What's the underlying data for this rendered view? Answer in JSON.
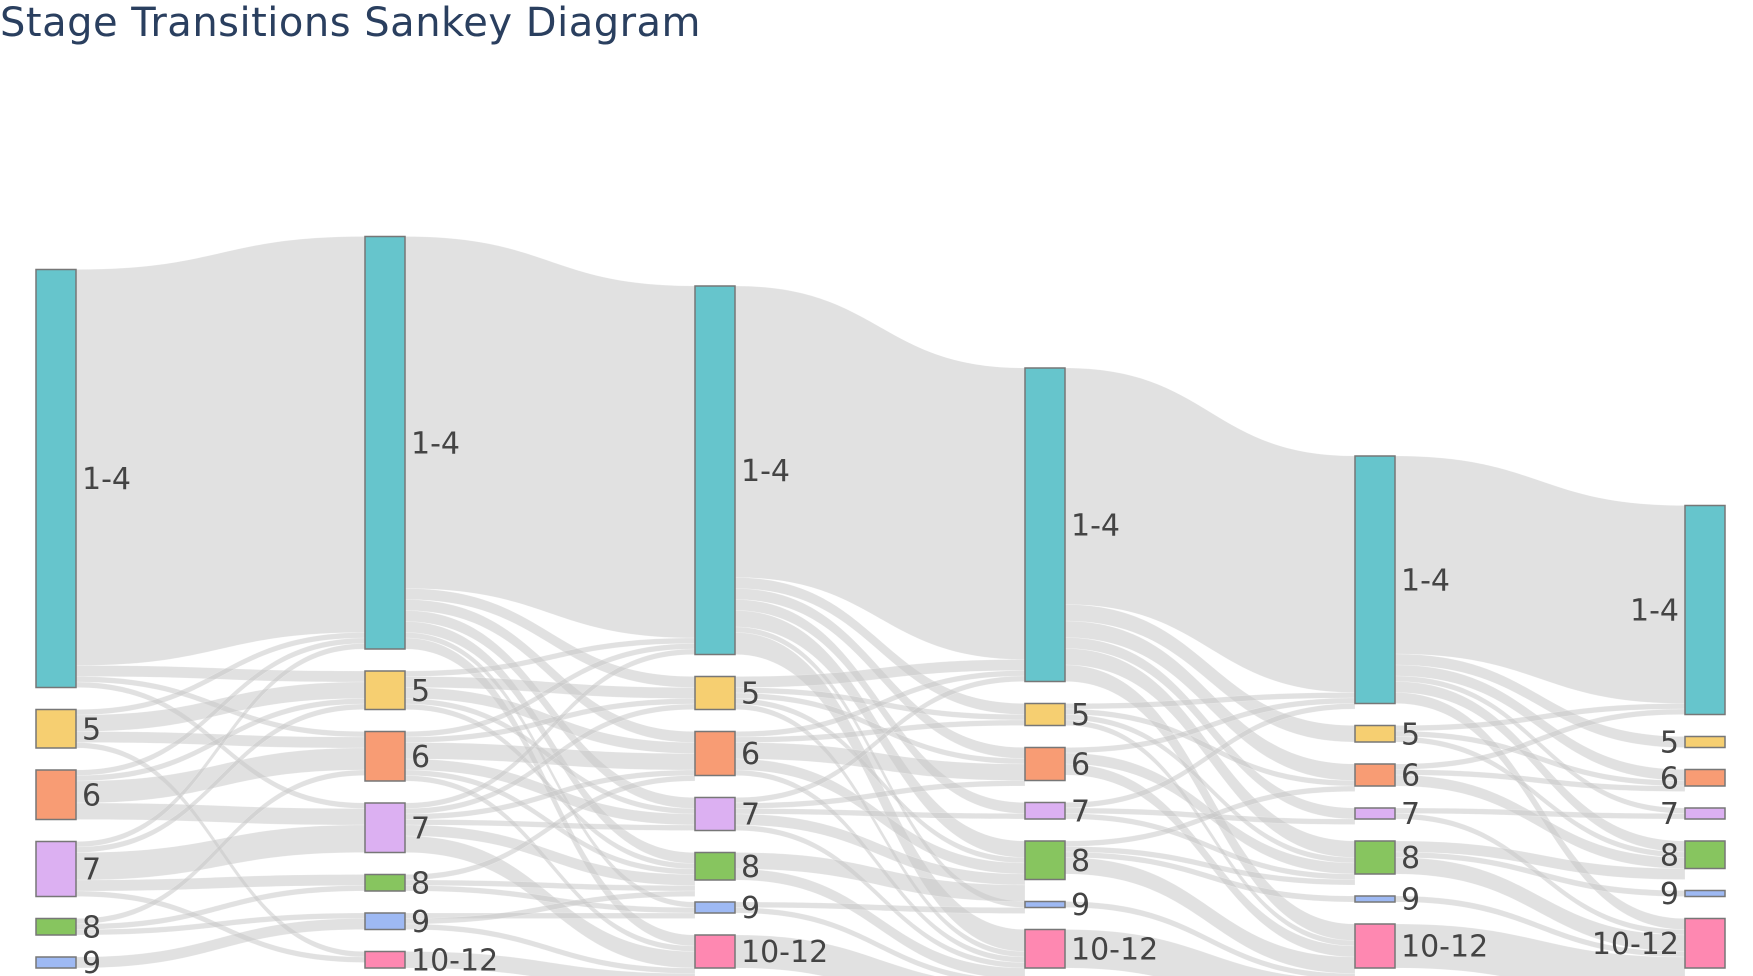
{
  "chart_data": {
    "type": "sankey",
    "title": "Stage Transitions Sankey Diagram",
    "stage_categories": [
      "1-4",
      "5",
      "6",
      "7",
      "8",
      "9",
      "10-12"
    ],
    "colors": {
      "1-4": "#66c5cc",
      "5": "#f6cf71",
      "6": "#f89c74",
      "7": "#dcb0f2",
      "8": "#87c55f",
      "9": "#9eb9f3",
      "10-12": "#fe88b1"
    },
    "link_color": "rgba(200,200,200,0.55)",
    "columns": [
      {
        "nodes": [
          {
            "label": "1-4",
            "value": 76
          },
          {
            "label": "5",
            "value": 7
          },
          {
            "label": "6",
            "value": 9
          },
          {
            "label": "7",
            "value": 10
          },
          {
            "label": "8",
            "value": 3
          },
          {
            "label": "9",
            "value": 2
          }
        ]
      },
      {
        "nodes": [
          {
            "label": "1-4",
            "value": 75
          },
          {
            "label": "5",
            "value": 7
          },
          {
            "label": "6",
            "value": 9
          },
          {
            "label": "7",
            "value": 9
          },
          {
            "label": "8",
            "value": 3
          },
          {
            "label": "9",
            "value": 3
          },
          {
            "label": "10-12",
            "value": 3
          }
        ]
      },
      {
        "nodes": [
          {
            "label": "1-4",
            "value": 67
          },
          {
            "label": "5",
            "value": 6
          },
          {
            "label": "6",
            "value": 8
          },
          {
            "label": "7",
            "value": 6
          },
          {
            "label": "8",
            "value": 5
          },
          {
            "label": "9",
            "value": 2
          },
          {
            "label": "10-12",
            "value": 6
          }
        ]
      },
      {
        "nodes": [
          {
            "label": "1-4",
            "value": 57
          },
          {
            "label": "5",
            "value": 4
          },
          {
            "label": "6",
            "value": 6
          },
          {
            "label": "7",
            "value": 3
          },
          {
            "label": "8",
            "value": 7
          },
          {
            "label": "9",
            "value": 1
          },
          {
            "label": "10-12",
            "value": 7
          }
        ]
      },
      {
        "nodes": [
          {
            "label": "1-4",
            "value": 45
          },
          {
            "label": "5",
            "value": 3
          },
          {
            "label": "6",
            "value": 4
          },
          {
            "label": "7",
            "value": 2
          },
          {
            "label": "8",
            "value": 6
          },
          {
            "label": "9",
            "value": 1
          },
          {
            "label": "10-12",
            "value": 8
          }
        ]
      },
      {
        "nodes": [
          {
            "label": "1-4",
            "value": 38
          },
          {
            "label": "5",
            "value": 2
          },
          {
            "label": "6",
            "value": 3
          },
          {
            "label": "7",
            "value": 2
          },
          {
            "label": "8",
            "value": 5
          },
          {
            "label": "9",
            "value": 1
          },
          {
            "label": "10-12",
            "value": 9
          }
        ]
      }
    ],
    "links": [
      [
        [
          "1-4",
          "1-4",
          72
        ],
        [
          "1-4",
          "5",
          2
        ],
        [
          "1-4",
          "6",
          1
        ],
        [
          "1-4",
          "7",
          1
        ],
        [
          "5",
          "1-4",
          1
        ],
        [
          "5",
          "5",
          3
        ],
        [
          "5",
          "6",
          2
        ],
        [
          "5",
          "10-12",
          1
        ],
        [
          "6",
          "1-4",
          1
        ],
        [
          "6",
          "5",
          1
        ],
        [
          "6",
          "6",
          4
        ],
        [
          "6",
          "7",
          3
        ],
        [
          "7",
          "1-4",
          1
        ],
        [
          "7",
          "5",
          1
        ],
        [
          "7",
          "7",
          5
        ],
        [
          "7",
          "8",
          2
        ],
        [
          "7",
          "10-12",
          1
        ],
        [
          "8",
          "6",
          1
        ],
        [
          "8",
          "8",
          1
        ],
        [
          "8",
          "9",
          1
        ],
        [
          "9",
          "9",
          2
        ]
      ],
      [
        [
          "1-4",
          "1-4",
          64
        ],
        [
          "1-4",
          "5",
          2
        ],
        [
          "1-4",
          "6",
          2
        ],
        [
          "1-4",
          "7",
          2
        ],
        [
          "1-4",
          "8",
          2
        ],
        [
          "1-4",
          "9",
          1
        ],
        [
          "1-4",
          "10-12",
          2
        ],
        [
          "5",
          "1-4",
          1
        ],
        [
          "5",
          "5",
          2
        ],
        [
          "5",
          "6",
          2
        ],
        [
          "5",
          "7",
          1
        ],
        [
          "5",
          "8",
          1
        ],
        [
          "6",
          "1-4",
          1
        ],
        [
          "6",
          "5",
          1
        ],
        [
          "6",
          "6",
          3
        ],
        [
          "6",
          "7",
          2
        ],
        [
          "6",
          "8",
          1
        ],
        [
          "6",
          "10-12",
          1
        ],
        [
          "7",
          "1-4",
          1
        ],
        [
          "7",
          "5",
          1
        ],
        [
          "7",
          "6",
          1
        ],
        [
          "7",
          "7",
          1
        ],
        [
          "7",
          "8",
          2
        ],
        [
          "7",
          "10-12",
          3
        ],
        [
          "8",
          "6",
          1
        ],
        [
          "8",
          "8",
          1
        ],
        [
          "8",
          "9",
          1
        ],
        [
          "9",
          "9",
          1
        ],
        [
          "9",
          "8",
          1
        ],
        [
          "9",
          "10-12",
          1
        ],
        [
          "10-12",
          "10-12",
          3
        ]
      ],
      [
        [
          "1-4",
          "1-4",
          53
        ],
        [
          "1-4",
          "5",
          2
        ],
        [
          "1-4",
          "6",
          2
        ],
        [
          "1-4",
          "7",
          2
        ],
        [
          "1-4",
          "8",
          3
        ],
        [
          "1-4",
          "9",
          1
        ],
        [
          "1-4",
          "10-12",
          4
        ],
        [
          "5",
          "1-4",
          2
        ],
        [
          "5",
          "5",
          1
        ],
        [
          "5",
          "6",
          1
        ],
        [
          "5",
          "8",
          1
        ],
        [
          "5",
          "10-12",
          1
        ],
        [
          "6",
          "1-4",
          1
        ],
        [
          "6",
          "5",
          1
        ],
        [
          "6",
          "6",
          3
        ],
        [
          "6",
          "8",
          2
        ],
        [
          "6",
          "10-12",
          1
        ],
        [
          "7",
          "1-4",
          1
        ],
        [
          "7",
          "6",
          1
        ],
        [
          "7",
          "7",
          1
        ],
        [
          "7",
          "8",
          2
        ],
        [
          "7",
          "10-12",
          1
        ],
        [
          "8",
          "8",
          3
        ],
        [
          "8",
          "10-12",
          2
        ],
        [
          "9",
          "9",
          1
        ],
        [
          "9",
          "10-12",
          1
        ],
        [
          "10-12",
          "10-12",
          6
        ]
      ],
      [
        [
          "1-4",
          "1-4",
          43
        ],
        [
          "1-4",
          "5",
          3
        ],
        [
          "1-4",
          "6",
          3
        ],
        [
          "1-4",
          "7",
          2
        ],
        [
          "1-4",
          "8",
          3
        ],
        [
          "1-4",
          "10-12",
          3
        ],
        [
          "5",
          "1-4",
          1
        ],
        [
          "5",
          "6",
          1
        ],
        [
          "5",
          "8",
          1
        ],
        [
          "5",
          "10-12",
          1
        ],
        [
          "6",
          "1-4",
          1
        ],
        [
          "6",
          "8",
          2
        ],
        [
          "6",
          "10-12",
          2
        ],
        [
          "7",
          "1-4",
          1
        ],
        [
          "7",
          "7",
          1
        ],
        [
          "7",
          "8",
          1
        ],
        [
          "8",
          "6",
          1
        ],
        [
          "8",
          "8",
          1
        ],
        [
          "8",
          "9",
          1
        ],
        [
          "8",
          "10-12",
          3
        ],
        [
          "9",
          "10-12",
          1
        ],
        [
          "10-12",
          "10-12",
          7
        ]
      ],
      [
        [
          "1-4",
          "1-4",
          36
        ],
        [
          "1-4",
          "5",
          2
        ],
        [
          "1-4",
          "6",
          2
        ],
        [
          "1-4",
          "7",
          1
        ],
        [
          "1-4",
          "8",
          2
        ],
        [
          "1-4",
          "10-12",
          2
        ],
        [
          "5",
          "1-4",
          1
        ],
        [
          "5",
          "6",
          1
        ],
        [
          "5",
          "8",
          1
        ],
        [
          "6",
          "1-4",
          1
        ],
        [
          "6",
          "6",
          1
        ],
        [
          "6",
          "8",
          2
        ],
        [
          "7",
          "7",
          1
        ],
        [
          "7",
          "10-12",
          1
        ],
        [
          "8",
          "8",
          2
        ],
        [
          "8",
          "9",
          1
        ],
        [
          "8",
          "10-12",
          3
        ],
        [
          "9",
          "10-12",
          1
        ],
        [
          "10-12",
          "10-12",
          8
        ]
      ]
    ]
  }
}
